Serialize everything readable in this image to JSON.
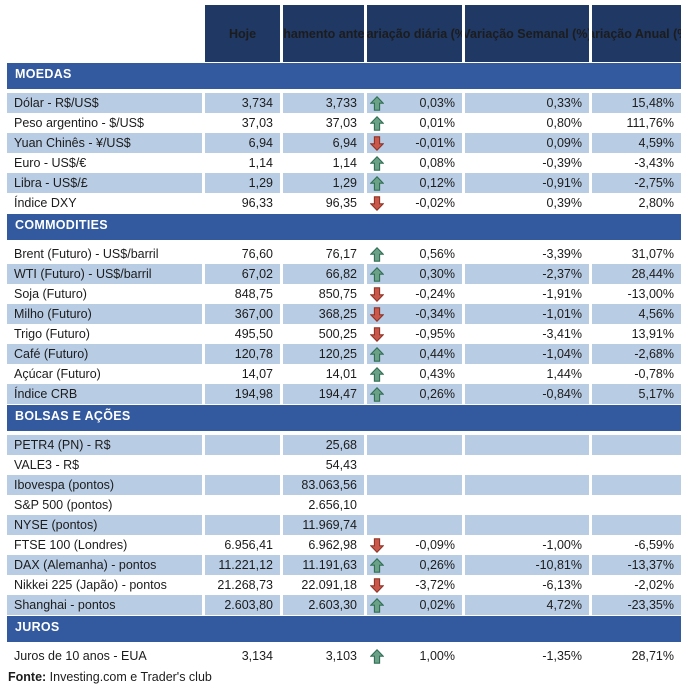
{
  "colors": {
    "header_bg": "#1F3864",
    "section_bg": "#33599E",
    "row_shade": "#B8CCE4",
    "arrow_up": "#6BA287",
    "arrow_up_border": "#2F6E54",
    "arrow_down": "#C9584A",
    "arrow_down_border": "#8E3327"
  },
  "chart_data": {
    "type": "table",
    "columns": [
      "Hoje",
      "Fechamento anterior",
      "Variação diária (%)",
      "Variação Semanal (%)",
      "Variação Anual (%)"
    ],
    "sections": [
      {
        "title": "MOEDAS",
        "first_shaded": true,
        "rows": [
          {
            "label": "Dólar - R$/US$",
            "hoje": "3,734",
            "fechamento": "3,733",
            "arrow": "up",
            "diaria": "0,03%",
            "semanal": "0,33%",
            "anual": "15,48%"
          },
          {
            "label": "Peso argentino - $/US$",
            "hoje": "37,03",
            "fechamento": "37,03",
            "arrow": "up",
            "diaria": "0,01%",
            "semanal": "0,80%",
            "anual": "111,76%"
          },
          {
            "label": "Yuan Chinês - ¥/US$",
            "hoje": "6,94",
            "fechamento": "6,94",
            "arrow": "down",
            "diaria": "-0,01%",
            "semanal": "0,09%",
            "anual": "4,59%"
          },
          {
            "label": "Euro - US$/€",
            "hoje": "1,14",
            "fechamento": "1,14",
            "arrow": "up",
            "diaria": "0,08%",
            "semanal": "-0,39%",
            "anual": "-3,43%"
          },
          {
            "label": "Libra - US$/£",
            "hoje": "1,29",
            "fechamento": "1,29",
            "arrow": "up",
            "diaria": "0,12%",
            "semanal": "-0,91%",
            "anual": "-2,75%"
          },
          {
            "label": "Índice DXY",
            "hoje": "96,33",
            "fechamento": "96,35",
            "arrow": "down",
            "diaria": "-0,02%",
            "semanal": "0,39%",
            "anual": "2,80%"
          }
        ]
      },
      {
        "title": "COMMODITIES",
        "first_shaded": false,
        "rows": [
          {
            "label": "Brent (Futuro) - US$/barril",
            "hoje": "76,60",
            "fechamento": "76,17",
            "arrow": "up",
            "diaria": "0,56%",
            "semanal": "-3,39%",
            "anual": "31,07%"
          },
          {
            "label": "WTI (Futuro) - US$/barril",
            "hoje": "67,02",
            "fechamento": "66,82",
            "arrow": "up",
            "diaria": "0,30%",
            "semanal": "-2,37%",
            "anual": "28,44%"
          },
          {
            "label": "Soja (Futuro)",
            "hoje": "848,75",
            "fechamento": "850,75",
            "arrow": "down",
            "diaria": "-0,24%",
            "semanal": "-1,91%",
            "anual": "-13,00%"
          },
          {
            "label": "Milho (Futuro)",
            "hoje": "367,00",
            "fechamento": "368,25",
            "arrow": "down",
            "diaria": "-0,34%",
            "semanal": "-1,01%",
            "anual": "4,56%"
          },
          {
            "label": "Trigo (Futuro)",
            "hoje": "495,50",
            "fechamento": "500,25",
            "arrow": "down",
            "diaria": "-0,95%",
            "semanal": "-3,41%",
            "anual": "13,91%"
          },
          {
            "label": "Café (Futuro)",
            "hoje": "120,78",
            "fechamento": "120,25",
            "arrow": "up",
            "diaria": "0,44%",
            "semanal": "-1,04%",
            "anual": "-2,68%"
          },
          {
            "label": "Açúcar (Futuro)",
            "hoje": "14,07",
            "fechamento": "14,01",
            "arrow": "up",
            "diaria": "0,43%",
            "semanal": "1,44%",
            "anual": "-0,78%"
          },
          {
            "label": "Índice CRB",
            "hoje": "194,98",
            "fechamento": "194,47",
            "arrow": "up",
            "diaria": "0,26%",
            "semanal": "-0,84%",
            "anual": "5,17%"
          }
        ]
      },
      {
        "title": "BOLSAS E AÇÕES",
        "first_shaded": true,
        "rows": [
          {
            "label": "PETR4 (PN) - R$",
            "hoje": "",
            "fechamento": "25,68",
            "arrow": "",
            "diaria": "",
            "semanal": "",
            "anual": ""
          },
          {
            "label": "VALE3 - R$",
            "hoje": "",
            "fechamento": "54,43",
            "arrow": "",
            "diaria": "",
            "semanal": "",
            "anual": ""
          },
          {
            "label": "Ibovespa (pontos)",
            "hoje": "",
            "fechamento": "83.063,56",
            "arrow": "",
            "diaria": "",
            "semanal": "",
            "anual": ""
          },
          {
            "label": "S&P 500 (pontos)",
            "hoje": "",
            "fechamento": "2.656,10",
            "arrow": "",
            "diaria": "",
            "semanal": "",
            "anual": ""
          },
          {
            "label": "NYSE (pontos)",
            "hoje": "",
            "fechamento": "11.969,74",
            "arrow": "",
            "diaria": "",
            "semanal": "",
            "anual": ""
          },
          {
            "label": "FTSE 100 (Londres)",
            "hoje": "6.956,41",
            "fechamento": "6.962,98",
            "arrow": "down",
            "diaria": "-0,09%",
            "semanal": "-1,00%",
            "anual": "-6,59%"
          },
          {
            "label": "DAX (Alemanha) - pontos",
            "hoje": "11.221,12",
            "fechamento": "11.191,63",
            "arrow": "up",
            "diaria": "0,26%",
            "semanal": "-10,81%",
            "anual": "-13,37%"
          },
          {
            "label": "Nikkei 225 (Japão) - pontos",
            "hoje": "21.268,73",
            "fechamento": "22.091,18",
            "arrow": "down",
            "diaria": "-3,72%",
            "semanal": "-6,13%",
            "anual": "-2,02%"
          },
          {
            "label": "Shanghai - pontos",
            "hoje": "2.603,80",
            "fechamento": "2.603,30",
            "arrow": "up",
            "diaria": "0,02%",
            "semanal": "4,72%",
            "anual": "-23,35%"
          }
        ]
      },
      {
        "title": "JUROS",
        "first_shaded": false,
        "rows": [
          {
            "label": "Juros de 10 anos - EUA",
            "hoje": "3,134",
            "fechamento": "3,103",
            "arrow": "up",
            "diaria": "1,00%",
            "semanal": "-1,35%",
            "anual": "28,71%"
          }
        ]
      }
    ],
    "footer": {
      "source_label": "Fonte:",
      "source_text": " Investing.com e Trader's club"
    }
  }
}
